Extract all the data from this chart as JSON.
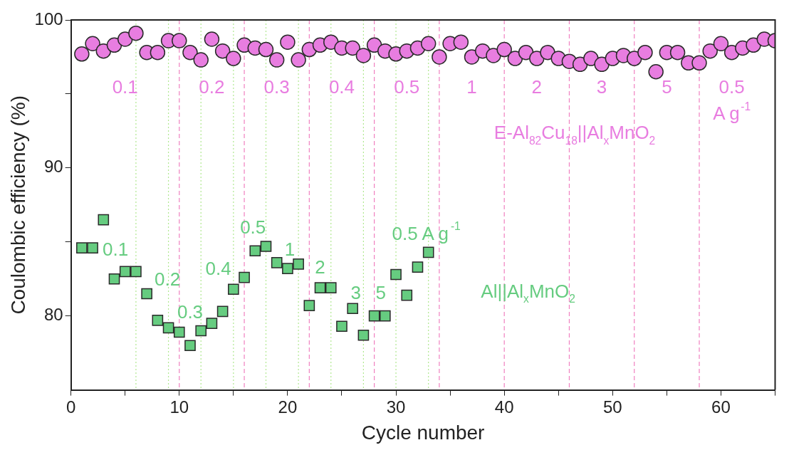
{
  "chart_data": {
    "type": "scatter",
    "xlabel": "Cycle number",
    "ylabel": "Coulombic efficiency (%)",
    "xlim": [
      0,
      65
    ],
    "ylim": [
      75,
      100
    ],
    "xticks": [
      0,
      {
        "value": 5,
        "label": null
      },
      10,
      {
        "value": 15,
        "label": null
      },
      20,
      {
        "value": 25,
        "label": null
      },
      30,
      {
        "value": 35,
        "label": null
      },
      40,
      {
        "value": 45,
        "label": null
      },
      50,
      {
        "value": 55,
        "label": null
      },
      60,
      {
        "value": 65,
        "label": null
      }
    ],
    "yticks": [
      80,
      {
        "value": 85,
        "label": null
      },
      90,
      {
        "value": 95,
        "label": null
      },
      100
    ],
    "grid": false,
    "legend": false,
    "series": [
      {
        "type": "scatter",
        "marker": "circle",
        "color": "#e87de0",
        "x": [
          1,
          2,
          3,
          4,
          5,
          6,
          7,
          8,
          9,
          10,
          11,
          12,
          13,
          14,
          15,
          16,
          17,
          18,
          19,
          20,
          21,
          22,
          23,
          24,
          25,
          26,
          27,
          28,
          29,
          30,
          31,
          32,
          33,
          34,
          35,
          36,
          37,
          38,
          39,
          40,
          41,
          42,
          43,
          44,
          45,
          46,
          47,
          48,
          49,
          50,
          51,
          52,
          53,
          54,
          55,
          56,
          57,
          58,
          59,
          60,
          61,
          62,
          63,
          64,
          65
        ],
        "values": [
          97.7,
          98.4,
          97.9,
          98.3,
          98.7,
          99.1,
          97.8,
          97.8,
          98.6,
          98.6,
          97.8,
          97.3,
          98.7,
          97.9,
          97.4,
          98.3,
          98.1,
          98.0,
          97.3,
          98.5,
          97.3,
          98.0,
          98.3,
          98.5,
          98.1,
          98.1,
          97.6,
          98.3,
          97.9,
          97.7,
          97.9,
          98.1,
          98.4,
          97.5,
          98.4,
          98.5,
          97.5,
          97.9,
          97.6,
          98.0,
          97.4,
          97.8,
          97.4,
          97.8,
          97.4,
          97.2,
          97.0,
          97.4,
          97.0,
          97.4,
          97.6,
          97.4,
          97.8,
          96.5,
          97.8,
          97.8,
          97.1,
          97.1,
          97.9,
          98.4,
          97.8,
          98.1,
          98.3,
          98.7,
          98.6
        ]
      },
      {
        "type": "scatter",
        "marker": "square",
        "color": "#66cc80",
        "x": [
          1,
          2,
          3,
          4,
          5,
          6,
          7,
          8,
          9,
          10,
          11,
          12,
          13,
          14,
          15,
          16,
          17,
          18,
          19,
          20,
          21,
          22,
          23,
          24,
          25,
          26,
          27,
          28,
          29,
          30,
          31,
          32,
          33
        ],
        "values": [
          84.6,
          84.6,
          86.5,
          82.5,
          83.0,
          83.0,
          81.5,
          79.7,
          79.2,
          78.9,
          78.0,
          79.0,
          79.5,
          80.3,
          81.8,
          82.6,
          84.4,
          84.7,
          83.6,
          83.2,
          83.5,
          80.7,
          81.9,
          81.9,
          79.3,
          80.5,
          78.7,
          80.0,
          80.0,
          82.8,
          81.4,
          83.3,
          84.3
        ]
      }
    ],
    "ref_lines": [
      {
        "axis": "x",
        "value": 10,
        "color": "#f080c0",
        "line_style": "dashed"
      },
      {
        "axis": "x",
        "value": 16,
        "color": "#f080c0",
        "line_style": "dashed"
      },
      {
        "axis": "x",
        "value": 22,
        "color": "#f080c0",
        "line_style": "dashed"
      },
      {
        "axis": "x",
        "value": 28,
        "color": "#f080c0",
        "line_style": "dashed"
      },
      {
        "axis": "x",
        "value": 34,
        "color": "#f080c0",
        "line_style": "dashed"
      },
      {
        "axis": "x",
        "value": 40,
        "color": "#f080c0",
        "line_style": "dashed"
      },
      {
        "axis": "x",
        "value": 46,
        "color": "#f080c0",
        "line_style": "dashed"
      },
      {
        "axis": "x",
        "value": 52,
        "color": "#f080c0",
        "line_style": "dashed"
      },
      {
        "axis": "x",
        "value": 58,
        "color": "#f080c0",
        "line_style": "dashed"
      },
      {
        "axis": "x",
        "value": 6,
        "color": "#b0e890",
        "line_style": "dotted"
      },
      {
        "axis": "x",
        "value": 9,
        "color": "#b0e890",
        "line_style": "dotted"
      },
      {
        "axis": "x",
        "value": 12,
        "color": "#b0e890",
        "line_style": "dotted"
      },
      {
        "axis": "x",
        "value": 15,
        "color": "#b0e890",
        "line_style": "dotted"
      },
      {
        "axis": "x",
        "value": 18,
        "color": "#b0e890",
        "line_style": "dotted"
      },
      {
        "axis": "x",
        "value": 21,
        "color": "#b0e890",
        "line_style": "dotted"
      },
      {
        "axis": "x",
        "value": 24,
        "color": "#b0e890",
        "line_style": "dotted"
      },
      {
        "axis": "x",
        "value": 27,
        "color": "#b0e890",
        "line_style": "dotted"
      },
      {
        "axis": "x",
        "value": 30,
        "color": "#b0e890",
        "line_style": "dotted"
      },
      {
        "axis": "x",
        "value": 33,
        "color": "#b0e890",
        "line_style": "dotted"
      }
    ],
    "annotations": [
      "0.1",
      "0.2",
      "0.3",
      "0.4",
      "0.5",
      "1",
      "2",
      "3",
      "5",
      "0.5",
      "A g$^{-1}$",
      "E-Al$_{82}$Cu$_{18}$||Al$_{x}$MnO$_{2}$",
      "0.1",
      "0.2",
      "0.3",
      "0.4",
      "0.5",
      "1",
      "2",
      "3",
      "5",
      "0.5 A g$^{-1}$",
      "Al||Al$_{x}$MnO$_{2}$"
    ]
  }
}
